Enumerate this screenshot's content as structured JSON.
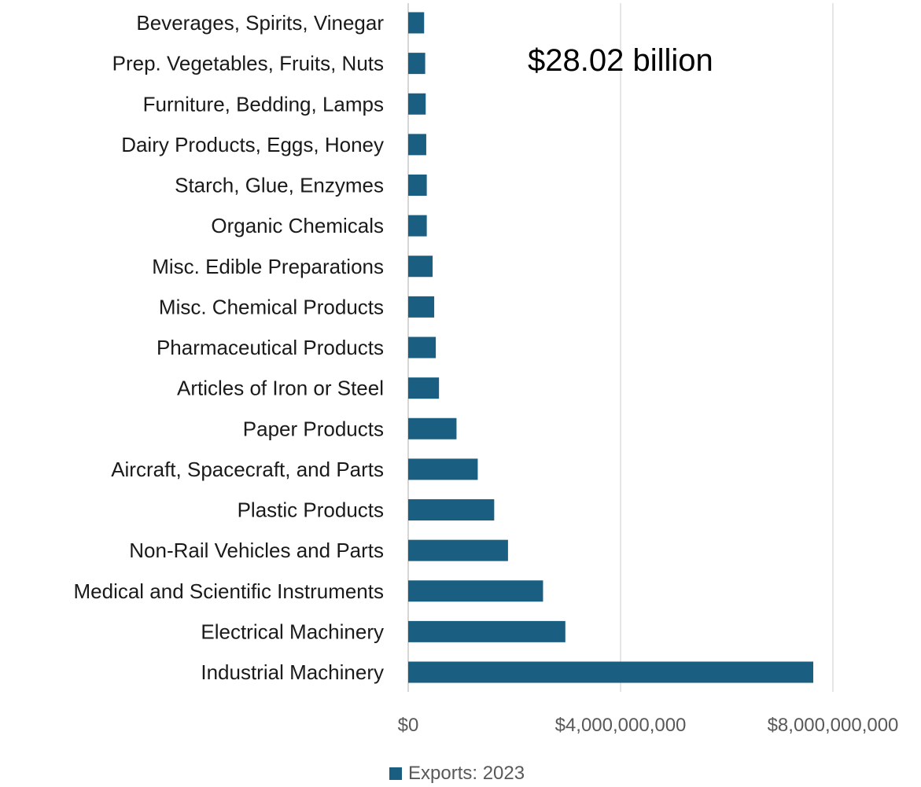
{
  "chart_data": {
    "type": "bar",
    "orientation": "horizontal",
    "annotation": "$28.02 billion",
    "categories": [
      "Beverages, Spirits, Vinegar",
      "Prep. Vegetables, Fruits, Nuts",
      "Furniture, Bedding, Lamps",
      "Dairy Products, Eggs, Honey",
      "Starch, Glue, Enzymes",
      "Organic Chemicals",
      "Misc. Edible Preparations",
      "Misc. Chemical Products",
      "Pharmaceutical Products",
      "Articles of Iron or Steel",
      "Paper Products",
      "Aircraft, Spacecraft, and Parts",
      "Plastic Products",
      "Non-Rail Vehicles and Parts",
      "Medical and Scientific Instruments",
      "Electrical Machinery",
      "Industrial Machinery"
    ],
    "series": [
      {
        "name": "Exports: 2023",
        "color": "#1a5f82",
        "values": [
          300000000,
          320000000,
          330000000,
          340000000,
          350000000,
          350000000,
          460000000,
          490000000,
          520000000,
          580000000,
          910000000,
          1310000000,
          1620000000,
          1880000000,
          2540000000,
          2960000000,
          7630000000
        ]
      }
    ],
    "xlim": [
      0,
      8000000000
    ],
    "xticks": [
      0,
      4000000000,
      8000000000
    ],
    "xtick_labels": [
      "$0",
      "$4,000,000,000",
      "$8,000,000,000"
    ],
    "grid": "vertical gridlines",
    "legend_position": "bottom",
    "colors": {
      "bar": "#1a5f82",
      "grid": "#d9d9d9",
      "axis": "#bfbfbf",
      "category_text": "#1a1a1a",
      "tick_text": "#595959"
    }
  }
}
